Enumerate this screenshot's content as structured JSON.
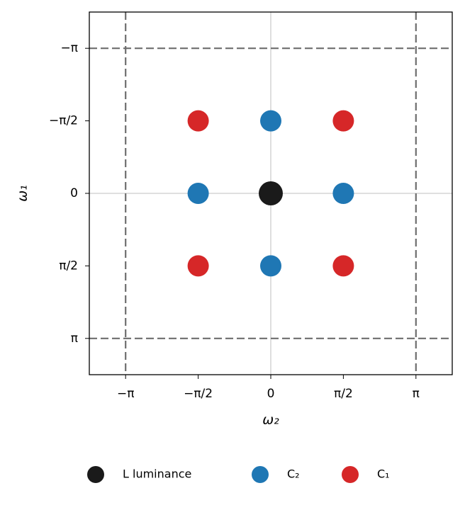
{
  "chart_data": {
    "type": "scatter",
    "xlabel": "ω₂",
    "ylabel": "ω₁",
    "xlim": [
      -3.927,
      3.927
    ],
    "ylim": [
      3.927,
      -3.927
    ],
    "xticks": [
      {
        "value": -3.1416,
        "label": "−π"
      },
      {
        "value": -1.5708,
        "label": "−π/2"
      },
      0,
      {
        "value": 1.5708,
        "label": "π/2"
      },
      {
        "value": 3.1416,
        "label": "π"
      }
    ],
    "yticks": [
      {
        "value": -3.1416,
        "label": "−π"
      },
      {
        "value": -1.5708,
        "label": "−π/2"
      },
      0,
      {
        "value": 1.5708,
        "label": "π/2"
      },
      {
        "value": 3.1416,
        "label": "π"
      }
    ],
    "dashed_lines": [
      -3.1416,
      3.1416
    ],
    "solid_lines": [
      0
    ],
    "series": [
      {
        "name": "L luminance",
        "color": "#1a1a1a",
        "x": [
          0
        ],
        "y": [
          0
        ]
      },
      {
        "name": "C₂",
        "color": "#1f77b4",
        "x": [
          0,
          -1.5708,
          1.5708,
          0
        ],
        "y": [
          -1.5708,
          0,
          0,
          1.5708
        ]
      },
      {
        "name": "C₁",
        "color": "#d62728",
        "x": [
          -1.5708,
          1.5708,
          -1.5708,
          1.5708
        ],
        "y": [
          -1.5708,
          -1.5708,
          1.5708,
          1.5708
        ]
      }
    ],
    "legend": "bottom"
  }
}
